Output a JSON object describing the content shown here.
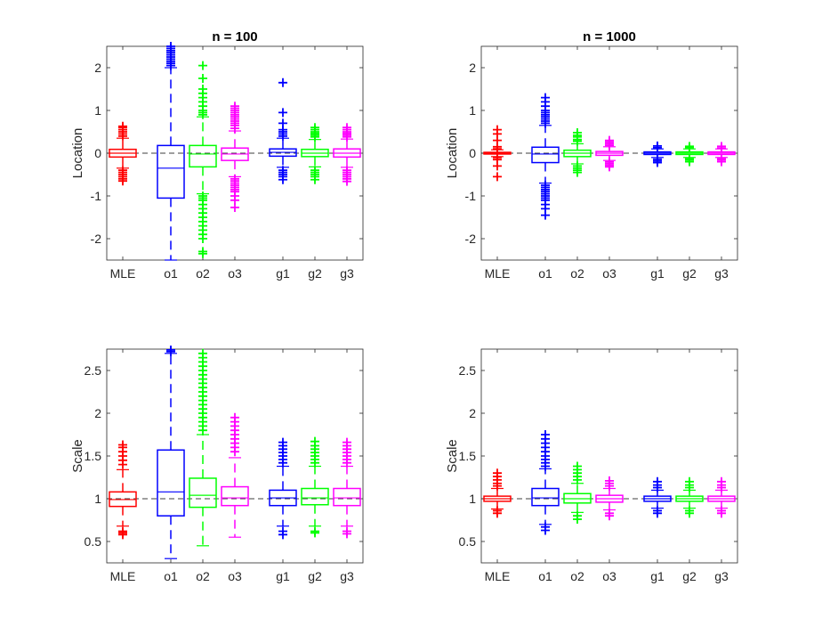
{
  "figure": {
    "description_colors": {
      "MLE": "#ff0000",
      "o1": "#0000ff",
      "o2": "#00ff00",
      "o3": "#ff00ff",
      "g1": "#0000ff",
      "g2": "#00ff00",
      "g3": "#ff00ff"
    }
  },
  "chart_data": [
    {
      "type": "box",
      "title": "n = 100",
      "ylabel": "Location",
      "xlabel": "",
      "ylim": [
        -2.5,
        2.5
      ],
      "yticks": [
        -2,
        -1,
        0,
        1,
        2
      ],
      "reference_line": 0,
      "categories": [
        "MLE",
        "o1",
        "o2",
        "o3",
        "g1",
        "g2",
        "g3"
      ],
      "positions": [
        1,
        2.5,
        3.5,
        4.5,
        6,
        7,
        8
      ],
      "colors": [
        "#ff0000",
        "#0000ff",
        "#00ff00",
        "#ff00ff",
        "#0000ff",
        "#00ff00",
        "#ff00ff"
      ],
      "boxes": [
        {
          "name": "MLE",
          "q1": -0.09,
          "median": 0.0,
          "q3": 0.09,
          "wlo": -0.35,
          "whi": 0.35,
          "outliers": [
            -0.65,
            -0.6,
            -0.55,
            -0.5,
            -0.45,
            -0.4,
            0.4,
            0.45,
            0.5,
            0.55,
            0.6,
            0.63
          ]
        },
        {
          "name": "o1",
          "q1": -1.05,
          "median": -0.35,
          "q3": 0.18,
          "wlo": -2.5,
          "whi": 2.0,
          "outliers": [
            2.05,
            2.1,
            2.15,
            2.2,
            2.25,
            2.3,
            2.35,
            2.4,
            2.45,
            2.5
          ]
        },
        {
          "name": "o2",
          "q1": -0.32,
          "median": -0.02,
          "q3": 0.18,
          "wlo": -0.95,
          "whi": 0.85,
          "outliers": [
            -2.35,
            -2.3,
            -2.0,
            -1.9,
            -1.8,
            -1.7,
            -1.6,
            -1.5,
            -1.4,
            -1.3,
            -1.2,
            -1.1,
            -1.05,
            -1.0,
            0.9,
            0.95,
            1.0,
            1.1,
            1.2,
            1.3,
            1.4,
            1.5,
            1.75,
            2.05
          ]
        },
        {
          "name": "o3",
          "q1": -0.17,
          "median": -0.02,
          "q3": 0.12,
          "wlo": -0.55,
          "whi": 0.52,
          "outliers": [
            -1.27,
            -1.1,
            -1.0,
            -0.9,
            -0.85,
            -0.8,
            -0.75,
            -0.7,
            -0.65,
            -0.6,
            0.58,
            0.65,
            0.7,
            0.75,
            0.8,
            0.85,
            0.9,
            0.95,
            1.0,
            1.05,
            1.1
          ]
        },
        {
          "name": "g1",
          "q1": -0.07,
          "median": 0.02,
          "q3": 0.1,
          "wlo": -0.33,
          "whi": 0.35,
          "outliers": [
            -0.62,
            -0.55,
            -0.5,
            -0.45,
            -0.4,
            0.4,
            0.45,
            0.5,
            0.55,
            0.7,
            0.95,
            1.65
          ]
        },
        {
          "name": "g2",
          "q1": -0.08,
          "median": 0.0,
          "q3": 0.09,
          "wlo": -0.32,
          "whi": 0.32,
          "outliers": [
            -0.62,
            -0.55,
            -0.5,
            -0.45,
            -0.4,
            0.38,
            0.42,
            0.46,
            0.5,
            0.55,
            0.6
          ]
        },
        {
          "name": "g3",
          "q1": -0.09,
          "median": 0.0,
          "q3": 0.1,
          "wlo": -0.33,
          "whi": 0.33,
          "outliers": [
            -0.66,
            -0.6,
            -0.55,
            -0.5,
            -0.45,
            -0.4,
            0.38,
            0.42,
            0.46,
            0.5,
            0.55,
            0.6
          ]
        }
      ]
    },
    {
      "type": "box",
      "title": "n = 1000",
      "ylabel": "Location",
      "xlabel": "",
      "ylim": [
        -2.5,
        2.5
      ],
      "yticks": [
        -2,
        -1,
        0,
        1,
        2
      ],
      "reference_line": 0,
      "categories": [
        "MLE",
        "o1",
        "o2",
        "o3",
        "g1",
        "g2",
        "g3"
      ],
      "positions": [
        1,
        2.5,
        3.5,
        4.5,
        6,
        7,
        8
      ],
      "colors": [
        "#ff0000",
        "#0000ff",
        "#00ff00",
        "#ff00ff",
        "#0000ff",
        "#00ff00",
        "#ff00ff"
      ],
      "boxes": [
        {
          "name": "MLE",
          "q1": -0.02,
          "median": 0.0,
          "q3": 0.02,
          "wlo": -0.08,
          "whi": 0.08,
          "outliers": [
            -0.55,
            -0.3,
            -0.15,
            -0.1,
            0.1,
            0.15,
            0.3,
            0.45,
            0.55
          ]
        },
        {
          "name": "o1",
          "q1": -0.22,
          "median": -0.02,
          "q3": 0.14,
          "wlo": -0.7,
          "whi": 0.65,
          "outliers": [
            -1.45,
            -1.3,
            -1.2,
            -1.1,
            -1.05,
            -1.0,
            -0.95,
            -0.9,
            -0.85,
            -0.8,
            -0.75,
            0.7,
            0.75,
            0.8,
            0.85,
            0.9,
            0.95,
            1.0,
            1.1,
            1.2,
            1.3
          ]
        },
        {
          "name": "o2",
          "q1": -0.08,
          "median": 0.0,
          "q3": 0.07,
          "wlo": -0.25,
          "whi": 0.22,
          "outliers": [
            -0.45,
            -0.4,
            -0.35,
            -0.3,
            0.28,
            0.32,
            0.38,
            0.42,
            0.48
          ]
        },
        {
          "name": "o3",
          "q1": -0.05,
          "median": 0.0,
          "q3": 0.04,
          "wlo": -0.17,
          "whi": 0.15,
          "outliers": [
            -0.32,
            -0.28,
            -0.24,
            -0.2,
            0.18,
            0.22,
            0.26,
            0.3
          ]
        },
        {
          "name": "g1",
          "q1": -0.03,
          "median": 0.0,
          "q3": 0.03,
          "wlo": -0.1,
          "whi": 0.1,
          "outliers": [
            -0.22,
            -0.18,
            -0.14,
            0.13,
            0.17
          ]
        },
        {
          "name": "g2",
          "q1": -0.03,
          "median": 0.0,
          "q3": 0.03,
          "wlo": -0.1,
          "whi": 0.1,
          "outliers": [
            -0.2,
            -0.16,
            -0.13,
            0.13,
            0.16
          ]
        },
        {
          "name": "g3",
          "q1": -0.03,
          "median": 0.0,
          "q3": 0.03,
          "wlo": -0.1,
          "whi": 0.1,
          "outliers": [
            -0.2,
            -0.16,
            -0.13,
            0.12,
            0.16
          ]
        }
      ]
    },
    {
      "type": "box",
      "title": "",
      "ylabel": "Scale",
      "xlabel": "",
      "ylim": [
        0.25,
        2.75
      ],
      "yticks": [
        0.5,
        1,
        1.5,
        2,
        2.5
      ],
      "reference_line": 1,
      "categories": [
        "MLE",
        "o1",
        "o2",
        "o3",
        "g1",
        "g2",
        "g3"
      ],
      "positions": [
        1,
        2.5,
        3.5,
        4.5,
        6,
        7,
        8
      ],
      "colors": [
        "#ff0000",
        "#0000ff",
        "#00ff00",
        "#ff00ff",
        "#0000ff",
        "#00ff00",
        "#ff00ff"
      ],
      "boxes": [
        {
          "name": "MLE",
          "q1": 0.91,
          "median": 0.99,
          "q3": 1.08,
          "wlo": 0.68,
          "whi": 1.34,
          "outliers": [
            0.58,
            0.6,
            0.62,
            1.4,
            1.45,
            1.5,
            1.55,
            1.6,
            1.63
          ]
        },
        {
          "name": "o1",
          "q1": 0.8,
          "median": 1.08,
          "q3": 1.57,
          "wlo": 0.3,
          "whi": 2.7,
          "outliers": [
            2.72,
            2.74,
            2.76
          ]
        },
        {
          "name": "o2",
          "q1": 0.9,
          "median": 1.04,
          "q3": 1.24,
          "wlo": 0.45,
          "whi": 1.75,
          "outliers": [
            1.8,
            1.85,
            1.9,
            1.95,
            2.0,
            2.05,
            2.1,
            2.15,
            2.2,
            2.25,
            2.3,
            2.35,
            2.4,
            2.45,
            2.5,
            2.55,
            2.6,
            2.65,
            2.7
          ]
        },
        {
          "name": "o3",
          "q1": 0.92,
          "median": 1.01,
          "q3": 1.14,
          "wlo": 0.55,
          "whi": 1.48,
          "outliers": [
            1.55,
            1.6,
            1.65,
            1.7,
            1.75,
            1.8,
            1.85,
            1.9,
            1.95
          ]
        },
        {
          "name": "g1",
          "q1": 0.92,
          "median": 1.01,
          "q3": 1.1,
          "wlo": 0.68,
          "whi": 1.38,
          "outliers": [
            0.58,
            0.62,
            1.42,
            1.46,
            1.5,
            1.54,
            1.58,
            1.62,
            1.66
          ]
        },
        {
          "name": "g2",
          "q1": 0.93,
          "median": 1.01,
          "q3": 1.12,
          "wlo": 0.68,
          "whi": 1.38,
          "outliers": [
            0.6,
            0.62,
            1.42,
            1.46,
            1.5,
            1.54,
            1.58,
            1.62,
            1.67
          ]
        },
        {
          "name": "g3",
          "q1": 0.92,
          "median": 1.01,
          "q3": 1.12,
          "wlo": 0.68,
          "whi": 1.38,
          "outliers": [
            0.59,
            0.62,
            1.42,
            1.46,
            1.5,
            1.54,
            1.58,
            1.62,
            1.66
          ]
        }
      ]
    },
    {
      "type": "box",
      "title": "",
      "ylabel": "Scale",
      "xlabel": "",
      "ylim": [
        0.25,
        2.75
      ],
      "yticks": [
        0.5,
        1,
        1.5,
        2,
        2.5
      ],
      "reference_line": 1,
      "categories": [
        "MLE",
        "o1",
        "o2",
        "o3",
        "g1",
        "g2",
        "g3"
      ],
      "positions": [
        1,
        2.5,
        3.5,
        4.5,
        6,
        7,
        8
      ],
      "colors": [
        "#ff0000",
        "#0000ff",
        "#00ff00",
        "#ff00ff",
        "#0000ff",
        "#00ff00",
        "#ff00ff"
      ],
      "boxes": [
        {
          "name": "MLE",
          "q1": 0.97,
          "median": 1.0,
          "q3": 1.03,
          "wlo": 0.88,
          "whi": 1.12,
          "outliers": [
            0.83,
            0.86,
            1.15,
            1.18,
            1.22,
            1.26,
            1.3
          ]
        },
        {
          "name": "o1",
          "q1": 0.92,
          "median": 1.01,
          "q3": 1.12,
          "wlo": 0.7,
          "whi": 1.35,
          "outliers": [
            0.63,
            0.67,
            1.38,
            1.42,
            1.46,
            1.5,
            1.55,
            1.6,
            1.65,
            1.7,
            1.75
          ]
        },
        {
          "name": "o2",
          "q1": 0.95,
          "median": 1.0,
          "q3": 1.06,
          "wlo": 0.84,
          "whi": 1.18,
          "outliers": [
            0.76,
            0.8,
            1.22,
            1.26,
            1.3,
            1.34,
            1.38
          ]
        },
        {
          "name": "o3",
          "q1": 0.96,
          "median": 1.0,
          "q3": 1.04,
          "wlo": 0.87,
          "whi": 1.12,
          "outliers": [
            0.8,
            0.83,
            1.15,
            1.18,
            1.21
          ]
        },
        {
          "name": "g1",
          "q1": 0.97,
          "median": 1.0,
          "q3": 1.03,
          "wlo": 0.89,
          "whi": 1.1,
          "outliers": [
            0.83,
            0.86,
            1.13,
            1.16,
            1.2
          ]
        },
        {
          "name": "g2",
          "q1": 0.97,
          "median": 1.0,
          "q3": 1.03,
          "wlo": 0.89,
          "whi": 1.1,
          "outliers": [
            0.83,
            0.86,
            1.13,
            1.16,
            1.2
          ]
        },
        {
          "name": "g3",
          "q1": 0.97,
          "median": 1.0,
          "q3": 1.03,
          "wlo": 0.89,
          "whi": 1.1,
          "outliers": [
            0.83,
            0.86,
            1.13,
            1.16,
            1.2
          ]
        }
      ]
    }
  ]
}
